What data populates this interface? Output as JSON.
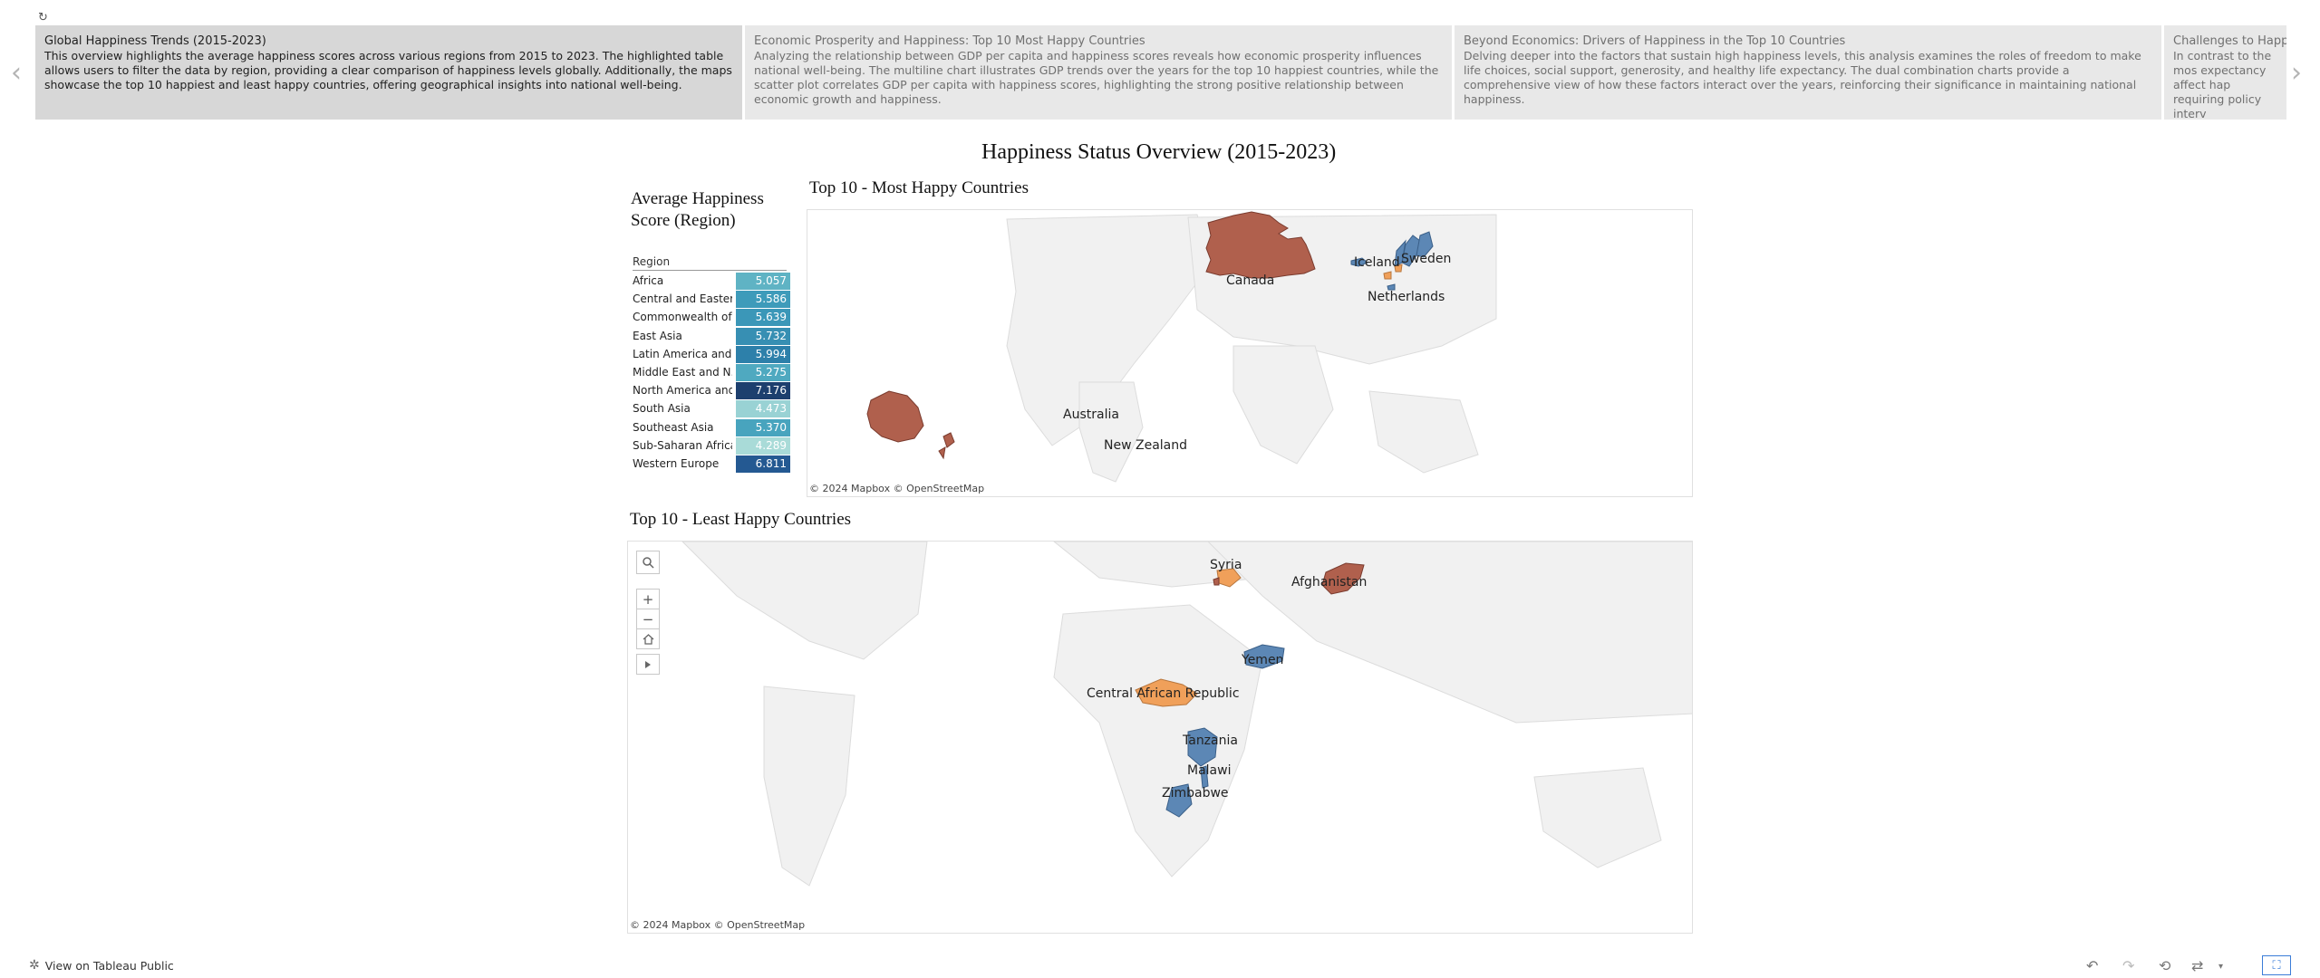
{
  "story": {
    "reload_icon": "refresh-icon",
    "prev_icon": "chevron-left-icon",
    "next_icon": "chevron-right-icon",
    "points": [
      {
        "title": "Global Happiness Trends (2015-2023)",
        "body": "This overview highlights the average happiness scores across various regions from 2015 to 2023. The highlighted table allows users to filter the data by region, providing a clear comparison of happiness levels globally. Additionally, the maps showcase the top 10 happiest and least happy countries, offering geographical insights into national well-being."
      },
      {
        "title": "Economic Prosperity and Happiness: Top 10 Most Happy Countries",
        "body": "Analyzing the relationship between GDP per capita and happiness scores reveals how economic prosperity influences national well-being. The multiline chart illustrates GDP trends over the years for the top 10 happiest countries, while the scatter plot correlates GDP per capita with happiness scores, highlighting the strong positive relationship between economic growth and happiness."
      },
      {
        "title": "Beyond Economics: Drivers of Happiness in the Top 10 Countries",
        "body": "Delving deeper into the factors that sustain high happiness levels, this analysis examines the roles of freedom to make life choices, social support, generosity, and healthy life expectancy. The dual combination charts provide a comprehensive view of how these factors interact over the years, reinforcing their significance in maintaining national happiness."
      },
      {
        "title": "Challenges to Happine",
        "body": "In contrast to the mos expectancy affect hap requiring policy interv"
      }
    ]
  },
  "dashboard": {
    "title": "Happiness Status Overview (2015-2023)"
  },
  "region_table": {
    "title_line1": "Average Happiness",
    "title_line2": "Score (Region)",
    "header": "Region",
    "rows": [
      {
        "region": "Africa",
        "score": "5.057",
        "color": "#5fb3c4"
      },
      {
        "region": "Central and Easter..",
        "score": "5.586",
        "color": "#3e9bba"
      },
      {
        "region": "Commonwealth of ..",
        "score": "5.639",
        "color": "#3b97b8"
      },
      {
        "region": "East Asia",
        "score": "5.732",
        "color": "#378fb3"
      },
      {
        "region": "Latin America and ..",
        "score": "5.994",
        "color": "#2d80aa"
      },
      {
        "region": "Middle East and N..",
        "score": "5.275",
        "color": "#4fa9c0"
      },
      {
        "region": "North America and..",
        "score": "7.176",
        "color": "#1d3f6e"
      },
      {
        "region": "South Asia",
        "score": "4.473",
        "color": "#99d2d4"
      },
      {
        "region": "Southeast Asia",
        "score": "5.370",
        "color": "#48a4be"
      },
      {
        "region": "Sub-Saharan Africa",
        "score": "4.289",
        "color": "#a9dbd8"
      },
      {
        "region": "Western Europe",
        "score": "6.811",
        "color": "#245992"
      }
    ]
  },
  "top_map": {
    "title": "Top 10 - Most Happy Countries",
    "credit": "© 2024 Mapbox  © OpenStreetMap",
    "labels": [
      "Canada",
      "Iceland",
      "Sweden",
      "Netherlands",
      "Australia",
      "New Zealand"
    ]
  },
  "bottom_map": {
    "title": "Top 10 - Least Happy Countries",
    "credit": "© 2024 Mapbox  © OpenStreetMap",
    "labels": [
      "Syria",
      "Afghanistan",
      "Yemen",
      "Central African Republic",
      "Tanzania",
      "Malawi",
      "Zimbabwe"
    ],
    "controls": {
      "search_icon": "search-icon",
      "zoom_in": "+",
      "zoom_out": "−",
      "home_icon": "home-icon",
      "pan_icon": "play-icon"
    }
  },
  "colors": {
    "brown": "#b0604d",
    "orange": "#f0a05a",
    "blue": "#5c87b5",
    "land": "#f0f0f0",
    "border": "#cfcfcf"
  },
  "footer": {
    "view_link": "View on Tableau Public"
  }
}
